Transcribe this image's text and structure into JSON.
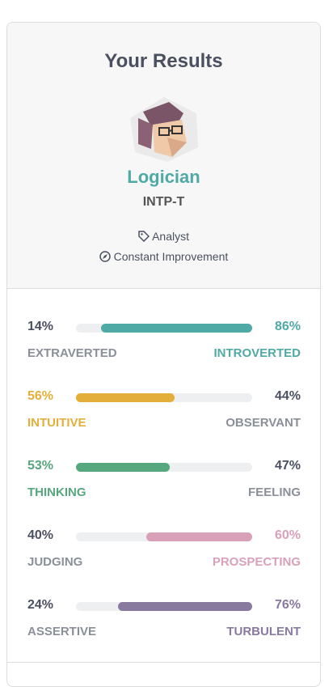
{
  "header": {
    "title": "Your Results"
  },
  "profile": {
    "name": "Logician",
    "code": "INTP-T",
    "tags": [
      "Analyst",
      "Constant Improvement"
    ]
  },
  "traits": [
    {
      "left_name": "EXTRAVERTED",
      "left_value": 14,
      "left_label": "14%",
      "right_name": "INTROVERTED",
      "right_value": 86,
      "right_label": "86%",
      "dominant": "right",
      "color": "#4fa9a5"
    },
    {
      "left_name": "INTUITIVE",
      "left_value": 56,
      "left_label": "56%",
      "right_name": "OBSERVANT",
      "right_value": 44,
      "right_label": "44%",
      "dominant": "left",
      "color": "#e4ae3a"
    },
    {
      "left_name": "THINKING",
      "left_value": 53,
      "left_label": "53%",
      "right_name": "FEELING",
      "right_value": 47,
      "right_label": "47%",
      "dominant": "left",
      "color": "#56a77d"
    },
    {
      "left_name": "JUDGING",
      "left_value": 40,
      "left_label": "40%",
      "right_name": "PROSPECTING",
      "right_value": 60,
      "right_label": "60%",
      "dominant": "right",
      "color": "#d8a1b7"
    },
    {
      "left_name": "ASSERTIVE",
      "left_value": 24,
      "left_label": "24%",
      "right_name": "TURBULENT",
      "right_value": 76,
      "right_label": "76%",
      "dominant": "right",
      "color": "#88799e"
    }
  ]
}
